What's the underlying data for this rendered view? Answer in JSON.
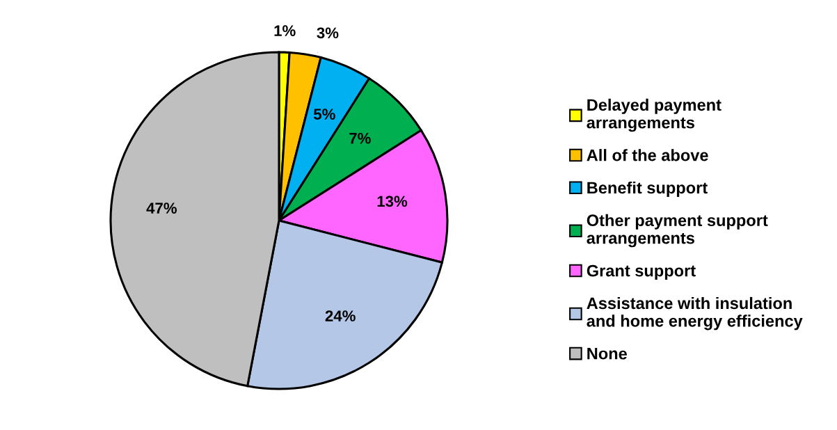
{
  "chart_data": {
    "type": "pie",
    "categories": [
      "Delayed payment arrangements",
      "All of the above",
      "Benefit support",
      "Other payment support arrangements",
      "Grant support",
      "Assistance with insulation and home energy efficiency",
      "None"
    ],
    "values": [
      1,
      3,
      5,
      7,
      13,
      24,
      47
    ],
    "colors": [
      "#ffff00",
      "#ffc000",
      "#00b0f0",
      "#00b050",
      "#ff66ff",
      "#b4c7e7",
      "#bfbfbf"
    ],
    "value_labels": [
      "1%",
      "3%",
      "5%",
      "7%",
      "13%",
      "24%",
      "47%"
    ],
    "legend": "right"
  }
}
